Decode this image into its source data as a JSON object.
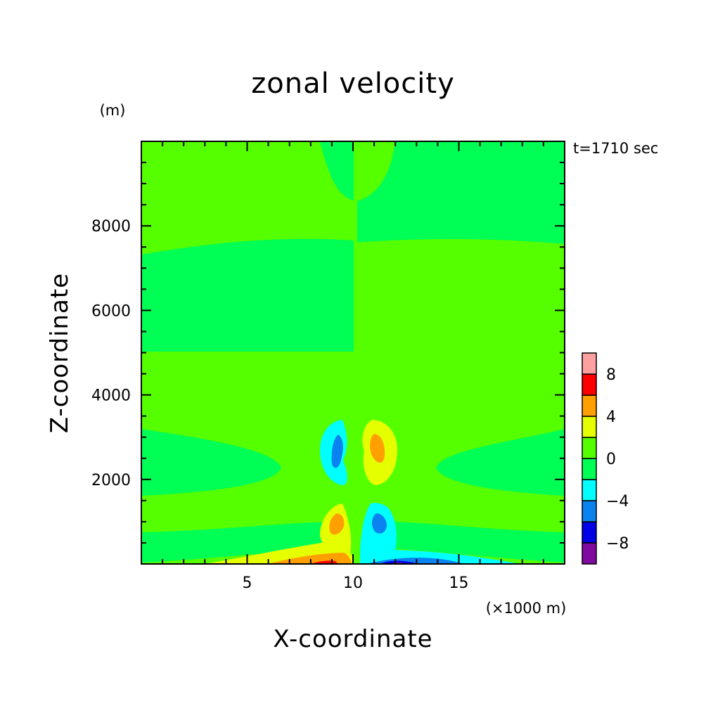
{
  "chart_data": {
    "type": "heatmap",
    "title": "zonal velocity",
    "xlabel": "X-coordinate",
    "ylabel": "Z-coordinate",
    "x_unit": "(×1000 m)",
    "y_unit": "(m)",
    "time_label": "t=1710 sec",
    "xlim": [
      0,
      20
    ],
    "ylim": [
      0,
      10000
    ],
    "x_ticks": [
      5,
      10,
      15
    ],
    "x_tick_labels": [
      "5",
      "10",
      "15"
    ],
    "y_ticks": [
      2000,
      4000,
      6000,
      8000
    ],
    "y_tick_labels": [
      "2000",
      "4000",
      "6000",
      "8000"
    ],
    "colorbar": {
      "levels": [
        -10,
        -8,
        -6,
        -4,
        -2,
        0,
        2,
        4,
        6,
        8,
        10
      ],
      "labels": [
        "8",
        "4",
        "0",
        "−4",
        "−8"
      ],
      "label_values": [
        8,
        4,
        0,
        -4,
        -8
      ],
      "colors": [
        "#800aa0",
        "#0000e6",
        "#0a82f0",
        "#00ffff",
        "#00ff55",
        "#55ff00",
        "#e6ff00",
        "#ffa000",
        "#ff0000",
        "#ffa0a0"
      ]
    },
    "features": [
      {
        "x": 9.0,
        "z": 2500,
        "u": -6.5,
        "note": "negative lobe left of center, mid level"
      },
      {
        "x": 11.1,
        "z": 2500,
        "u": 5.5,
        "note": "positive lobe right of center, mid level"
      },
      {
        "x": 9.1,
        "z": 1000,
        "u": 5.5,
        "note": "positive lobe left of center, low level"
      },
      {
        "x": 11.0,
        "z": 1000,
        "u": -6.5,
        "note": "negative lobe right of center, low level"
      },
      {
        "x": 9.0,
        "z": 0,
        "u": 8.5,
        "note": "surface positive maximum"
      },
      {
        "x": 12.0,
        "z": 0,
        "u": -9.0,
        "note": "surface negative minimum"
      }
    ]
  }
}
